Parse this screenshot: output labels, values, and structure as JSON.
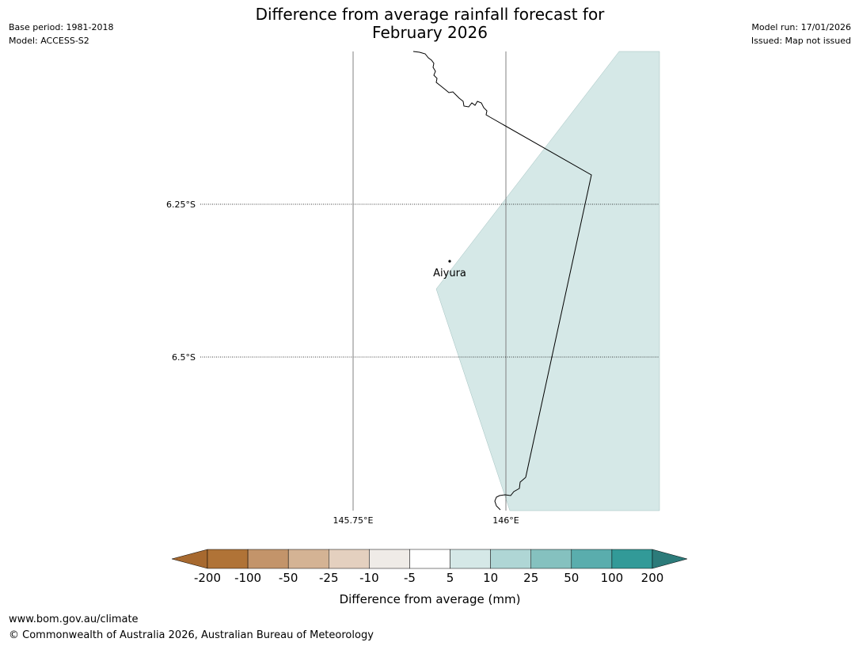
{
  "header": {
    "title_line1": "Difference from average rainfall forecast for",
    "title_line2": "February 2026",
    "base_period": "Base period: 1981-2018",
    "model": "Model: ACCESS-S2",
    "model_run": "Model run: 17/01/2026",
    "issued": "Issued: Map not issued"
  },
  "map": {
    "lat_labels": [
      "6.25°S",
      "6.5°S"
    ],
    "lon_labels": [
      "145.75°E",
      "146°E"
    ],
    "place": {
      "name": "Aiyura"
    },
    "forecast_fill_color": "#d5e8e7",
    "forecast_category": "5 to 10 mm"
  },
  "colorbar": {
    "tick_labels": [
      "-200",
      "-100",
      "-50",
      "-25",
      "-10",
      "-5",
      "5",
      "10",
      "25",
      "50",
      "100",
      "200"
    ],
    "colors": [
      "#a7692f",
      "#b07337",
      "#c3946a",
      "#d4b394",
      "#e4d0bf",
      "#efebe7",
      "#ffffff",
      "#d5e8e7",
      "#afd6d5",
      "#85c1bf",
      "#5aadad",
      "#329a98",
      "#2c7b7a"
    ],
    "label": "Difference from average (mm)"
  },
  "footer": {
    "url": "www.bom.gov.au/climate",
    "copyright": "© Commonwealth of Australia 2026, Australian Bureau of Meteorology"
  }
}
